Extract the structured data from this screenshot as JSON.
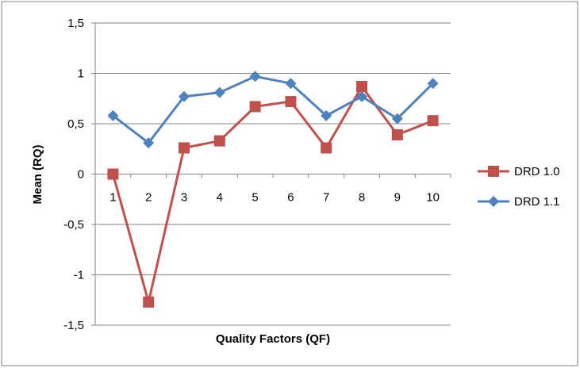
{
  "chart_data": {
    "type": "line",
    "xlabel": "Quality Factors (QF)",
    "ylabel": "Mean (RQ)",
    "categories": [
      "1",
      "2",
      "3",
      "4",
      "5",
      "6",
      "7",
      "8",
      "9",
      "10"
    ],
    "ylim": [
      -1.5,
      1.5
    ],
    "yticks": [
      1.5,
      1,
      0.5,
      0,
      -0.5,
      -1,
      -1.5
    ],
    "ytick_labels": [
      "1,5",
      "1",
      "0,5",
      "0",
      "-0,5",
      "-1",
      "-1,5"
    ],
    "grid": true,
    "legend_position": "right",
    "series": [
      {
        "name": "DRD 1.0",
        "color": "#c0504d",
        "marker": "square",
        "values": [
          0.0,
          -1.27,
          0.26,
          0.33,
          0.67,
          0.72,
          0.26,
          0.87,
          0.39,
          0.53
        ]
      },
      {
        "name": "DRD 1.1",
        "color": "#4f81bd",
        "marker": "diamond",
        "values": [
          0.58,
          0.31,
          0.77,
          0.81,
          0.97,
          0.9,
          0.58,
          0.77,
          0.55,
          0.9
        ]
      }
    ]
  }
}
